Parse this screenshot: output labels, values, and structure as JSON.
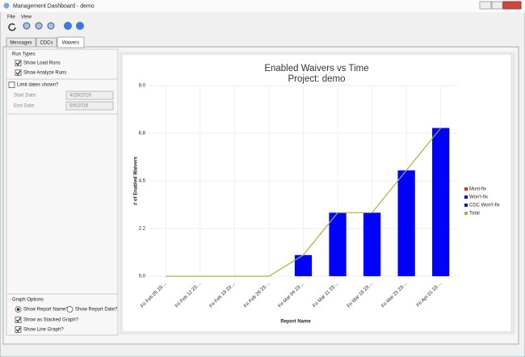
{
  "window": {
    "title": "Management Dashboard - demo",
    "menu": [
      "File",
      "View"
    ],
    "tabs": [
      "Messages",
      "CDCs",
      "Waivers"
    ]
  },
  "run_types": {
    "title": "Run Types",
    "options": [
      "Show Load Runs",
      "Show Analyze Runs"
    ],
    "checked": [
      true,
      true
    ]
  },
  "dates": {
    "limit": "Limit dates shown?",
    "limit_checked": false,
    "start_label": "Start Date:",
    "start": "4/28/2016",
    "end_label": "End Date:",
    "end": "5/6/2016"
  },
  "graph_options": {
    "title": "Graph Options",
    "radios": [
      "Show Report Name?",
      "Show Report Date?"
    ],
    "radio_selected": [
      true,
      false
    ],
    "checks": [
      "Show as Stacked Graph?",
      "Show Line Graph?"
    ],
    "checked": [
      true,
      true
    ]
  },
  "chart_data": {
    "type": "bar",
    "stacked": true,
    "title": "Enabled Waivers vs Time",
    "subtitle": "Project: demo",
    "x_label": "Report Name",
    "y_label": "# of Enabled Waivers",
    "categories": [
      "Fri Feb 05 23:...",
      "Fri Feb 12 23:...",
      "Fri Feb 19 23:...",
      "Fri Feb 26 23:...",
      "Fri Mar 04 23:...",
      "Fri Mar 11 23:...",
      "Fri Mar 18 23:...",
      "Fri Mar 25 23:...",
      "Fri Apr 01 23:..."
    ],
    "series": [
      {
        "name": "Must-fix",
        "color": "#e8262a",
        "values": [
          0,
          0,
          0,
          0,
          0,
          0,
          0,
          0,
          0
        ]
      },
      {
        "name": "Won't-fix",
        "color": "#0000ff",
        "values": [
          0,
          0,
          0,
          0,
          1,
          3,
          3,
          5,
          7
        ]
      },
      {
        "name": "CDC Won't-fix",
        "color": "#1a1a8c",
        "values": [
          0,
          0,
          0,
          0,
          0,
          0,
          0,
          0,
          0
        ]
      },
      {
        "name": "Total",
        "color": "#a3b340",
        "type": "line",
        "values": [
          0,
          0,
          0,
          0,
          1,
          3,
          3,
          5,
          7
        ]
      }
    ],
    "ylim": [
      0,
      9
    ],
    "yticks": [
      {
        "value": 0,
        "label": "0.0"
      },
      {
        "value": 2.25,
        "label": "2.2"
      },
      4.5,
      {
        "value": 6.75,
        "label": "6.8"
      },
      {
        "value": 9,
        "label": "9.0"
      }
    ],
    "grid": true,
    "legend": "right"
  }
}
